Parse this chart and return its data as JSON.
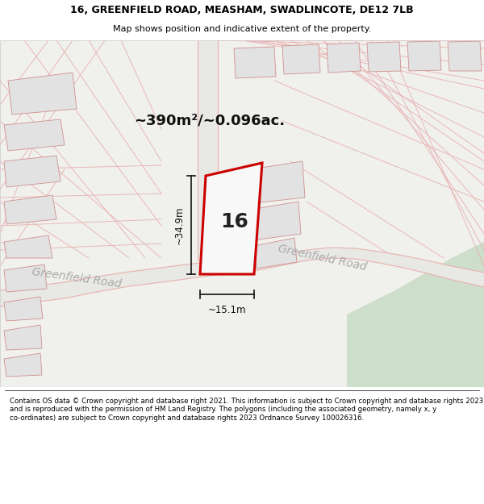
{
  "title_line1": "16, GREENFIELD ROAD, MEASHAM, SWADLINCOTE, DE12 7LB",
  "title_line2": "Map shows position and indicative extent of the property.",
  "area_label": "~390m²/~0.096ac.",
  "plot_number": "16",
  "dim_height": "~34.9m",
  "dim_width": "~15.1m",
  "road_label_left": "Greenfield Road",
  "road_label_right": "Greenfield Road",
  "footer_text": "Contains OS data © Crown copyright and database right 2021. This information is subject to Crown copyright and database rights 2023 and is reproduced with the permission of HM Land Registry. The polygons (including the associated geometry, namely x, y co-ordinates) are subject to Crown copyright and database rights 2023 Ordnance Survey 100026316.",
  "bg_color": "#f0f0ec",
  "plot_fill": "#f8f8f8",
  "plot_edge": "#cc0000",
  "dim_color": "#111111",
  "pink_line_color": "#e8b0b0",
  "green_area_color": "#cddeca",
  "building_fill": "#e2e2e2",
  "building_edge": "#d09090",
  "road_fill": "#e8e8e4",
  "white": "#ffffff",
  "footer_bg": "#ffffff",
  "title_bg": "#ffffff"
}
